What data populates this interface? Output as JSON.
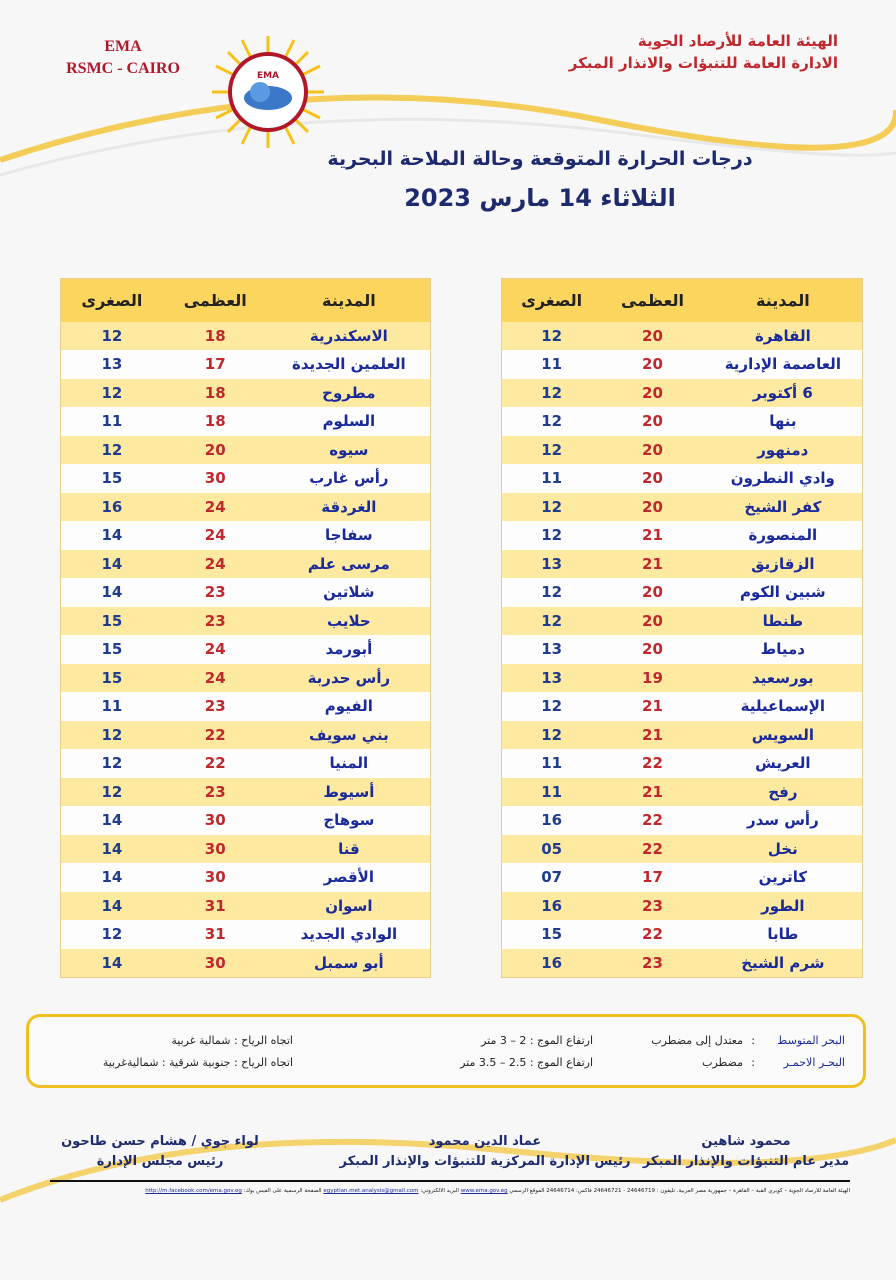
{
  "header": {
    "org_line1": "الهيئة العامة للأرصاد الجوية",
    "org_line2": "الادارة العامة للتنبؤات والانذار المبكر",
    "ema": "EMA",
    "rsmc": "RSMC - CAIRO",
    "logo_text": "EMA"
  },
  "title": {
    "line1": "درجات الحرارة المتوقعة وحالة الملاحة البحرية",
    "line2": "الثلاثاء  14 مارس 2023"
  },
  "columns": {
    "city": "المدينة",
    "max": "العظمى",
    "min": "الصغرى"
  },
  "colors": {
    "header": "#fbd55e",
    "stripe": "#fdeaa0",
    "city": "#1a2a9a",
    "max": "#c0282d",
    "min": "#1f3c8f"
  },
  "right_table": [
    [
      "القاهرة",
      "20",
      "12"
    ],
    [
      "العاصمة الإدارية",
      "20",
      "11"
    ],
    [
      "6 أكتوبر",
      "20",
      "12"
    ],
    [
      "بنها",
      "20",
      "12"
    ],
    [
      "دمنهور",
      "20",
      "12"
    ],
    [
      "وادي النطرون",
      "20",
      "11"
    ],
    [
      "كفر الشيخ",
      "20",
      "12"
    ],
    [
      "المنصورة",
      "21",
      "12"
    ],
    [
      "الزقازيق",
      "21",
      "13"
    ],
    [
      "شبين الكوم",
      "20",
      "12"
    ],
    [
      "طنطا",
      "20",
      "12"
    ],
    [
      "دمياط",
      "20",
      "13"
    ],
    [
      "بورسعيد",
      "19",
      "13"
    ],
    [
      "الإسماعيلية",
      "21",
      "12"
    ],
    [
      "السويس",
      "21",
      "12"
    ],
    [
      "العريش",
      "22",
      "11"
    ],
    [
      "رفح",
      "21",
      "11"
    ],
    [
      "رأس سدر",
      "22",
      "16"
    ],
    [
      "نخل",
      "22",
      "05"
    ],
    [
      "كاترين",
      "17",
      "07"
    ],
    [
      "الطور",
      "23",
      "16"
    ],
    [
      "طابا",
      "22",
      "15"
    ],
    [
      "شرم الشيخ",
      "23",
      "16"
    ]
  ],
  "left_table": [
    [
      "الاسكندرية",
      "18",
      "12"
    ],
    [
      "العلمين الجديدة",
      "17",
      "13"
    ],
    [
      "مطروح",
      "18",
      "12"
    ],
    [
      "السلوم",
      "18",
      "11"
    ],
    [
      "سيوه",
      "20",
      "12"
    ],
    [
      "رأس غارب",
      "30",
      "15"
    ],
    [
      "الغردقة",
      "24",
      "16"
    ],
    [
      "سفاجا",
      "24",
      "14"
    ],
    [
      "مرسى علم",
      "24",
      "14"
    ],
    [
      "شلاتين",
      "23",
      "14"
    ],
    [
      "حلايب",
      "23",
      "15"
    ],
    [
      "أبورمد",
      "24",
      "15"
    ],
    [
      "رأس حدربة",
      "24",
      "15"
    ],
    [
      "الفيوم",
      "23",
      "11"
    ],
    [
      "بني سويف",
      "22",
      "12"
    ],
    [
      "المنيا",
      "22",
      "12"
    ],
    [
      "أسيوط",
      "23",
      "12"
    ],
    [
      "سوهاج",
      "30",
      "14"
    ],
    [
      "قنا",
      "30",
      "14"
    ],
    [
      "الأقصر",
      "30",
      "14"
    ],
    [
      "اسوان",
      "31",
      "14"
    ],
    [
      "الوادي الجديد",
      "31",
      "12"
    ],
    [
      "أبو سمبل",
      "30",
      "14"
    ]
  ],
  "marine": [
    {
      "sea": "البحر المتوسط",
      "colon": ":",
      "state": "معتدل إلى مضطرب",
      "waves": "ارتفاع الموج : 2 – 3 متر",
      "wind": "اتجاه الرياح :  شمالية غربية"
    },
    {
      "sea": "البحـر الاحمـر",
      "colon": ":",
      "state": "مضطرب",
      "waves": "ارتفاع الموج : 2.5 – 3.5 متر",
      "wind": "اتجاه الرياح :  جنوبية شرقية : شماليةغربية"
    }
  ],
  "signatures": [
    {
      "name": "محمود شاهين",
      "title": "مدير عام التنبؤات والإنذار المبكر"
    },
    {
      "name": "عماد الدين محمود",
      "title": "رئيس الإدارة المركزية للتنبؤات والإنذار المبكر"
    },
    {
      "name": "لواء جوي / هشام حسن طاحون",
      "title": "رئيس مجلس الإدارة"
    }
  ],
  "footer": {
    "address": "الهيئة العامة للأرصاد الجوية – كوبري القبة – القاهرة – جمهورية مصر العربية. تليفون : 24646719 - 24646721 فاكس: 24646714 الموقع الرسمي",
    "site": "www.ema.gov.eg",
    "email_label": "البريد الالكتروني:",
    "email": "egyptian.met.analysis@gmail.com",
    "fb_label": "الصفحة الرسمية على الفيس بوك:",
    "fb": "http://m.facebook.com/ema.gov.eg"
  }
}
